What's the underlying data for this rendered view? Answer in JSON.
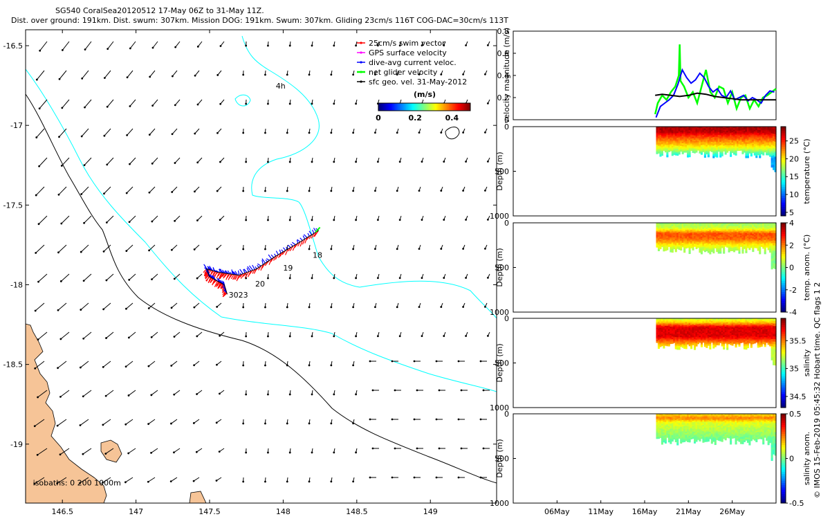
{
  "header": {
    "title_line1": "SG540 CoralSea20120512 17-May 06Z to 31-May 11Z.",
    "title_line2": "Dist. over ground: 191km. Dist. swum: 307km. Mission DOG: 191km. Swum: 307km. Gliding 23cm/s 116T COG-DAC=30cm/s 113T"
  },
  "credit": "© IMOS 15-Feb-2019 05:45:32 Hobart time. QC flags 1  2",
  "colors": {
    "swim_vector": "#ff0000",
    "gps_velocity": "#ff00ff",
    "dac": "#0000ff",
    "net_velocity": "#00ff00",
    "geo_velocity": "#000000",
    "coast_isobath_200": "#00ffff",
    "land": "#f6c497"
  },
  "chart_data": [
    {
      "type": "scatter",
      "name": "map",
      "xlim": [
        146.25,
        149.45
      ],
      "ylim": [
        -19.37,
        -16.4
      ],
      "x_ticks": [
        146.5,
        147,
        147.5,
        148,
        148.5,
        149
      ],
      "y_ticks": [
        -16.5,
        -17,
        -17.5,
        -18,
        -18.5,
        -19
      ],
      "legend": {
        "placement": "top-right",
        "entries": [
          "25cm/s swim vector",
          "GPS surface velocity",
          "dive-avg current veloc.",
          "net glider velocity",
          "sfc geo. vel. 31-May-2012"
        ]
      },
      "colorbar": {
        "label": "(m/s)",
        "ticks": [
          "0",
          "0.2",
          "0.4"
        ],
        "range": [
          0,
          0.5
        ]
      },
      "annotations": [
        {
          "text": "4h",
          "x": 147.95,
          "y": -16.77
        },
        {
          "text": "18",
          "x": 148.2,
          "y": -17.83
        },
        {
          "text": "19",
          "x": 148.0,
          "y": -17.91
        },
        {
          "text": "20",
          "x": 147.81,
          "y": -18.01
        },
        {
          "text": "3023",
          "x": 147.63,
          "y": -18.08
        },
        {
          "text": "isobaths: 0   200   1000m",
          "x": 146.3,
          "y": -19.26
        }
      ],
      "track": [
        [
          148.24,
          -17.66
        ],
        [
          148.1,
          -17.74
        ],
        [
          147.95,
          -17.82
        ],
        [
          147.82,
          -17.9
        ],
        [
          147.7,
          -17.94
        ],
        [
          147.62,
          -17.93
        ],
        [
          147.55,
          -17.92
        ],
        [
          147.48,
          -17.9
        ],
        [
          147.5,
          -17.95
        ],
        [
          147.56,
          -17.98
        ],
        [
          147.6,
          -18.0
        ],
        [
          147.62,
          -18.06
        ]
      ],
      "track_labels": [
        "18",
        "19",
        "20",
        "3023"
      ]
    },
    {
      "type": "line",
      "name": "velocity",
      "ylabel": "velocity magnitude (m/s)",
      "ylim": [
        0,
        0.8
      ],
      "yticks": [
        0,
        0.2,
        0.4,
        0.6,
        0.8
      ],
      "xlim": [
        0,
        30
      ],
      "x_ticks": [
        {
          "label": "06May",
          "x": 5
        },
        {
          "label": "11May",
          "x": 10
        },
        {
          "label": "16May",
          "x": 15
        },
        {
          "label": "21May",
          "x": 20
        },
        {
          "label": "26May",
          "x": 25
        }
      ],
      "series": [
        {
          "x": [
            16.2,
            16.5,
            17,
            17.5,
            18,
            18.5,
            18.9,
            19,
            19.1,
            19.5,
            20,
            20.5,
            21,
            21.5,
            22,
            22.5,
            23,
            23.5,
            24,
            24.5,
            25,
            25.5,
            26,
            26.5,
            27,
            27.5,
            28,
            28.5,
            29,
            29.5,
            30
          ],
          "values": [
            0.05,
            0.15,
            0.22,
            0.18,
            0.25,
            0.3,
            0.4,
            0.68,
            0.35,
            0.3,
            0.2,
            0.25,
            0.15,
            0.3,
            0.45,
            0.25,
            0.2,
            0.3,
            0.28,
            0.15,
            0.25,
            0.1,
            0.2,
            0.22,
            0.1,
            0.18,
            0.12,
            0.2,
            0.22,
            0.25,
            0.28
          ]
        },
        {
          "x": [
            16.3,
            16.8,
            17.3,
            17.8,
            18.3,
            18.8,
            19.3,
            19.8,
            20.3,
            20.8,
            21.3,
            21.8,
            22.3,
            22.8,
            23.3,
            23.8,
            24.3,
            24.8,
            25.3,
            25.8,
            26.3,
            26.8,
            27.3,
            27.8,
            28.3,
            28.8,
            29.3,
            29.8
          ],
          "values": [
            0.02,
            0.12,
            0.15,
            0.18,
            0.22,
            0.32,
            0.45,
            0.38,
            0.33,
            0.36,
            0.42,
            0.38,
            0.3,
            0.25,
            0.28,
            0.22,
            0.2,
            0.26,
            0.18,
            0.2,
            0.22,
            0.17,
            0.2,
            0.18,
            0.15,
            0.22,
            0.26,
            0.25
          ]
        },
        {
          "x": [
            16.2,
            17,
            18,
            19,
            20,
            21,
            22,
            23,
            24,
            25,
            26,
            27,
            28,
            29,
            30
          ],
          "values": [
            0.22,
            0.23,
            0.22,
            0.21,
            0.22,
            0.24,
            0.23,
            0.21,
            0.2,
            0.19,
            0.18,
            0.18,
            0.18,
            0.18,
            0.18
          ]
        }
      ]
    },
    {
      "type": "heatmap",
      "name": "temperature",
      "ylabel": "Depth (m)",
      "ylim": [
        1000,
        0
      ],
      "yticks": [
        0,
        500,
        1000
      ],
      "x_data_range": [
        16.3,
        30.0
      ],
      "depth_range": [
        0,
        350
      ],
      "colorbar": {
        "label": "temperature (°C)",
        "range": [
          4,
          29
        ],
        "ticks": [
          5,
          10,
          15,
          20,
          25
        ]
      },
      "profile": [
        [
          0,
          28
        ],
        [
          60,
          27.5
        ],
        [
          100,
          25
        ],
        [
          150,
          23
        ],
        [
          200,
          21
        ],
        [
          260,
          18
        ],
        [
          320,
          14
        ],
        [
          350,
          11
        ]
      ]
    },
    {
      "type": "heatmap",
      "name": "temperature anomaly",
      "ylabel": "Depth (m)",
      "ylim": [
        1000,
        0
      ],
      "yticks": [
        0,
        500,
        1000
      ],
      "x_data_range": [
        16.3,
        30.0
      ],
      "depth_range": [
        0,
        350
      ],
      "colorbar": {
        "label": "temp. anom. (°C)",
        "range": [
          -4,
          4
        ],
        "ticks": [
          -4,
          -2,
          0,
          2,
          4
        ]
      },
      "profile": [
        [
          0,
          0.2
        ],
        [
          60,
          0.6
        ],
        [
          120,
          2.4
        ],
        [
          180,
          2.2
        ],
        [
          240,
          1.2
        ],
        [
          300,
          0.4
        ],
        [
          350,
          0
        ]
      ]
    },
    {
      "type": "heatmap",
      "name": "salinity",
      "ylabel": "Depth (m)",
      "ylim": [
        1000,
        0
      ],
      "yticks": [
        0,
        500,
        1000
      ],
      "x_data_range": [
        16.3,
        30.0
      ],
      "depth_range": [
        0,
        350
      ],
      "colorbar": {
        "label": "salinity",
        "range": [
          34.3,
          35.9
        ],
        "ticks": [
          34.5,
          35,
          35.5
        ]
      },
      "profile": [
        [
          0,
          35.2
        ],
        [
          50,
          35.4
        ],
        [
          100,
          35.75
        ],
        [
          200,
          35.75
        ],
        [
          270,
          35.5
        ],
        [
          320,
          35.3
        ],
        [
          350,
          35.2
        ]
      ]
    },
    {
      "type": "heatmap",
      "name": "salinity anomaly",
      "ylabel": "Depth (m)",
      "ylim": [
        1000,
        0
      ],
      "yticks": [
        0,
        500,
        1000
      ],
      "x_data_range": [
        16.3,
        30.0
      ],
      "depth_range": [
        0,
        350
      ],
      "colorbar": {
        "label": "salinity anom.",
        "range": [
          -0.5,
          0.5
        ],
        "ticks": [
          -0.5,
          0,
          0.5
        ]
      },
      "profile": [
        [
          0,
          0.15
        ],
        [
          50,
          0.25
        ],
        [
          100,
          0.1
        ],
        [
          180,
          0.05
        ],
        [
          260,
          0
        ],
        [
          350,
          -0.05
        ]
      ]
    }
  ]
}
